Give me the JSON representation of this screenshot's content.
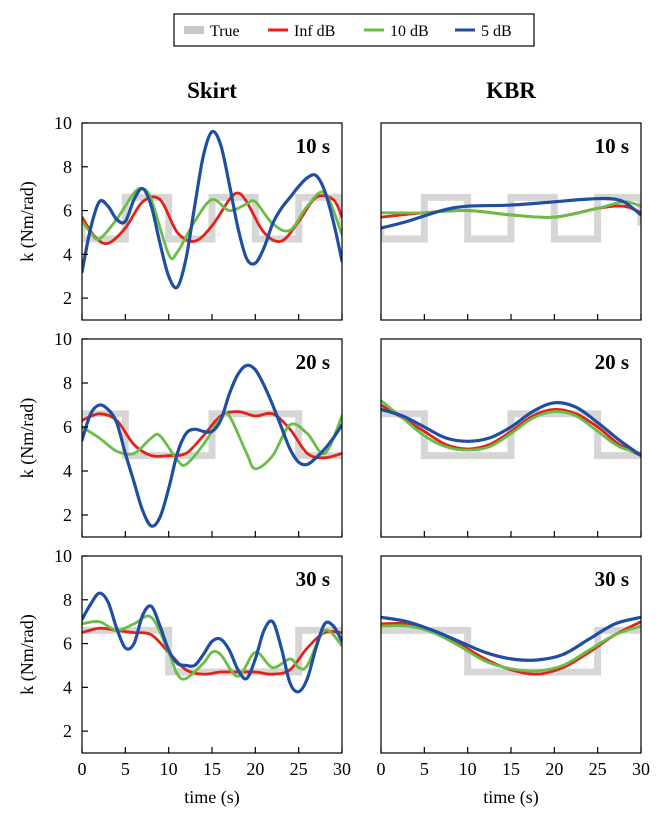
{
  "legend": {
    "items": [
      {
        "name": "True",
        "color": "#c8c8c8"
      },
      {
        "name": "Inf dB",
        "color": "#e32219"
      },
      {
        "name": "10 dB",
        "color": "#6abd45"
      },
      {
        "name": "5 dB",
        "color": "#1f4ea3"
      }
    ]
  },
  "columns": [
    "Skirt",
    "KBR"
  ],
  "chart_data": [
    {
      "type": "line",
      "column": "Skirt",
      "label": "10 s",
      "xlabel": "",
      "ylabel": "k (Nm/rad)",
      "xlim": [
        0,
        30
      ],
      "ylim": [
        1,
        10
      ],
      "yticks": [
        2,
        4,
        6,
        8,
        10
      ],
      "xticks": [
        0,
        5,
        10,
        15,
        20,
        25,
        30
      ],
      "series": [
        {
          "name": "True",
          "x": [
            0,
            0,
            5,
            5,
            10,
            10,
            15,
            15,
            20,
            20,
            25,
            25,
            30,
            30
          ],
          "y": [
            5.3,
            4.7,
            4.7,
            6.6,
            6.6,
            4.7,
            4.7,
            6.6,
            6.6,
            4.7,
            4.7,
            6.6,
            6.6,
            5.3
          ]
        },
        {
          "name": "Inf dB",
          "x": [
            0,
            1.5,
            3,
            5,
            7,
            9,
            11,
            13,
            15,
            17,
            18,
            19,
            21,
            23,
            25,
            27,
            29,
            30
          ],
          "y": [
            5.7,
            4.8,
            4.5,
            5.2,
            6.4,
            6.5,
            5.0,
            4.6,
            5.3,
            6.5,
            6.8,
            6.4,
            5.0,
            4.6,
            5.5,
            6.6,
            6.5,
            5.7
          ]
        },
        {
          "name": "10 dB",
          "x": [
            0,
            1,
            2,
            4,
            6,
            7,
            8,
            10,
            11,
            13,
            15,
            17,
            19,
            20,
            22,
            24,
            26,
            28,
            30
          ],
          "y": [
            5.5,
            5.0,
            4.7,
            5.6,
            6.8,
            7.0,
            6.5,
            4.0,
            4.1,
            5.5,
            6.5,
            6.0,
            6.3,
            6.4,
            5.4,
            5.1,
            6.2,
            6.8,
            4.9
          ]
        },
        {
          "name": "5 dB",
          "x": [
            0,
            1,
            2,
            3,
            4,
            5,
            6,
            7,
            8,
            9,
            10,
            11,
            12,
            13,
            14,
            15,
            16,
            17,
            18,
            19,
            20,
            21,
            22,
            23,
            24,
            25,
            26,
            27,
            28,
            29,
            30
          ],
          "y": [
            3.2,
            5.2,
            6.4,
            6.2,
            5.6,
            5.5,
            6.5,
            7.0,
            6.2,
            4.5,
            3.0,
            2.5,
            3.8,
            6.2,
            8.5,
            9.6,
            9.0,
            7.2,
            5.2,
            3.8,
            3.6,
            4.3,
            5.4,
            6.1,
            6.6,
            7.1,
            7.5,
            7.6,
            6.9,
            5.5,
            3.7
          ]
        }
      ]
    },
    {
      "type": "line",
      "column": "KBR",
      "label": "10 s",
      "xlabel": "",
      "ylabel": "",
      "xlim": [
        0,
        30
      ],
      "ylim": [
        1,
        10
      ],
      "yticks": [],
      "xticks": [
        0,
        5,
        10,
        15,
        20,
        25,
        30
      ],
      "series": [
        {
          "name": "True",
          "x": [
            0,
            0,
            5,
            5,
            10,
            10,
            15,
            15,
            20,
            20,
            25,
            25,
            30,
            30
          ],
          "y": [
            5.3,
            4.7,
            4.7,
            6.6,
            6.6,
            4.7,
            4.7,
            6.6,
            6.6,
            4.7,
            4.7,
            6.6,
            6.6,
            5.3
          ]
        },
        {
          "name": "Inf dB",
          "x": [
            0,
            5,
            10,
            15,
            20,
            25,
            28,
            30
          ],
          "y": [
            5.7,
            5.9,
            6.0,
            5.8,
            5.7,
            6.1,
            6.2,
            5.9
          ]
        },
        {
          "name": "10 dB",
          "x": [
            0,
            5,
            10,
            15,
            20,
            25,
            28,
            30
          ],
          "y": [
            5.9,
            5.9,
            6.0,
            5.8,
            5.7,
            6.1,
            6.4,
            6.2
          ]
        },
        {
          "name": "5 dB",
          "x": [
            0,
            3,
            7,
            10,
            15,
            20,
            23,
            26,
            28,
            30
          ],
          "y": [
            5.2,
            5.5,
            6.0,
            6.2,
            6.25,
            6.4,
            6.5,
            6.55,
            6.4,
            5.8
          ]
        }
      ]
    },
    {
      "type": "line",
      "column": "Skirt",
      "label": "20 s",
      "xlabel": "",
      "ylabel": "k (Nm/rad)",
      "xlim": [
        0,
        30
      ],
      "ylim": [
        1,
        10
      ],
      "yticks": [
        2,
        4,
        6,
        8,
        10
      ],
      "xticks": [
        0,
        5,
        10,
        15,
        20,
        25,
        30
      ],
      "series": [
        {
          "name": "True",
          "x": [
            0,
            0,
            5,
            5,
            15,
            15,
            25,
            25,
            30,
            30
          ],
          "y": [
            6.6,
            6.6,
            6.6,
            4.7,
            4.7,
            6.6,
            6.6,
            4.7,
            4.7,
            4.7
          ]
        },
        {
          "name": "Inf dB",
          "x": [
            0,
            2,
            4,
            6,
            8,
            10,
            12,
            14,
            16,
            18,
            20,
            22,
            24,
            26,
            28,
            30
          ],
          "y": [
            6.3,
            6.6,
            6.3,
            5.2,
            4.7,
            4.7,
            4.8,
            5.6,
            6.5,
            6.7,
            6.5,
            6.6,
            5.9,
            4.8,
            4.6,
            4.8
          ]
        },
        {
          "name": "10 dB",
          "x": [
            0,
            2,
            4,
            6,
            8,
            9,
            11,
            12,
            14,
            16,
            17,
            19,
            20,
            22,
            24,
            26,
            28,
            30
          ],
          "y": [
            6.0,
            5.5,
            4.9,
            4.8,
            5.5,
            5.6,
            4.5,
            4.3,
            5.2,
            6.4,
            6.5,
            4.8,
            4.1,
            4.7,
            6.1,
            5.7,
            4.8,
            6.5
          ]
        },
        {
          "name": "5 dB",
          "x": [
            0,
            1,
            2,
            3,
            4,
            5,
            6,
            7,
            8,
            9,
            10,
            11,
            12,
            13,
            14,
            15,
            16,
            17,
            18,
            19,
            20,
            21,
            22,
            23,
            24,
            25,
            26,
            27,
            28,
            29,
            30
          ],
          "y": [
            5.4,
            6.6,
            7.0,
            6.8,
            6.2,
            4.8,
            3.5,
            2.2,
            1.5,
            1.9,
            3.2,
            4.8,
            5.7,
            5.9,
            5.8,
            5.8,
            6.3,
            7.5,
            8.4,
            8.8,
            8.6,
            7.9,
            7.0,
            6.0,
            5.0,
            4.4,
            4.3,
            4.6,
            5.0,
            5.5,
            6.1
          ]
        }
      ]
    },
    {
      "type": "line",
      "column": "KBR",
      "label": "20 s",
      "xlabel": "",
      "ylabel": "",
      "xlim": [
        0,
        30
      ],
      "ylim": [
        1,
        10
      ],
      "yticks": [],
      "xticks": [
        0,
        5,
        10,
        15,
        20,
        25,
        30
      ],
      "series": [
        {
          "name": "True",
          "x": [
            0,
            0,
            5,
            5,
            15,
            15,
            25,
            25,
            30,
            30
          ],
          "y": [
            6.6,
            6.6,
            6.6,
            4.7,
            4.7,
            6.6,
            6.6,
            4.7,
            4.7,
            4.7
          ]
        },
        {
          "name": "Inf dB",
          "x": [
            0,
            2.5,
            5,
            7.5,
            10,
            12.5,
            15,
            17.5,
            20,
            22.5,
            25,
            27.5,
            30
          ],
          "y": [
            7.0,
            6.4,
            5.8,
            5.2,
            5.0,
            5.2,
            5.8,
            6.5,
            6.8,
            6.6,
            6.0,
            5.2,
            4.7
          ]
        },
        {
          "name": "10 dB",
          "x": [
            0,
            2.5,
            5,
            7.5,
            10,
            12.5,
            15,
            17.5,
            20,
            22.5,
            25,
            27.5,
            30
          ],
          "y": [
            7.2,
            6.4,
            5.6,
            5.1,
            4.95,
            5.1,
            5.7,
            6.4,
            6.7,
            6.5,
            5.8,
            5.1,
            4.8
          ]
        },
        {
          "name": "5 dB",
          "x": [
            0,
            2.5,
            5,
            7.5,
            10,
            12.5,
            15,
            17.5,
            20,
            22.5,
            25,
            27.5,
            30
          ],
          "y": [
            6.8,
            6.5,
            6.0,
            5.5,
            5.35,
            5.5,
            6.0,
            6.7,
            7.1,
            6.9,
            6.2,
            5.4,
            4.7
          ]
        }
      ]
    },
    {
      "type": "line",
      "column": "Skirt",
      "label": "30 s",
      "xlabel": "time (s)",
      "ylabel": "k (Nm/rad)",
      "xlim": [
        0,
        30
      ],
      "ylim": [
        1,
        10
      ],
      "yticks": [
        2,
        4,
        6,
        8,
        10
      ],
      "xticks": [
        0,
        5,
        10,
        15,
        20,
        25,
        30
      ],
      "series": [
        {
          "name": "True",
          "x": [
            0,
            0,
            10,
            10,
            25,
            25,
            30,
            30
          ],
          "y": [
            6.6,
            6.6,
            6.6,
            4.7,
            4.7,
            6.6,
            6.6,
            6.6
          ]
        },
        {
          "name": "Inf dB",
          "x": [
            0,
            2,
            4,
            6,
            8,
            10,
            12,
            14,
            16,
            18,
            20,
            22,
            24,
            26,
            28,
            30
          ],
          "y": [
            6.5,
            6.7,
            6.6,
            6.5,
            6.4,
            5.6,
            4.8,
            4.6,
            4.7,
            4.7,
            4.7,
            4.6,
            4.8,
            5.8,
            6.5,
            6.5
          ]
        },
        {
          "name": "10 dB",
          "x": [
            0,
            2,
            4,
            6,
            8,
            10,
            11,
            12,
            14,
            15,
            16,
            18,
            20,
            22,
            24,
            25,
            26,
            28,
            30
          ],
          "y": [
            6.9,
            7.0,
            6.6,
            6.9,
            7.2,
            5.6,
            4.6,
            4.4,
            5.1,
            5.6,
            5.5,
            4.5,
            5.6,
            4.9,
            5.3,
            4.9,
            5.0,
            6.6,
            5.9
          ]
        },
        {
          "name": "5 dB",
          "x": [
            0,
            1,
            2,
            3,
            4,
            5,
            6,
            7,
            8,
            9,
            10,
            11,
            12,
            13,
            14,
            15,
            16,
            17,
            18,
            19,
            20,
            21,
            22,
            23,
            24,
            25,
            26,
            27,
            28,
            29,
            30
          ],
          "y": [
            7.1,
            7.8,
            8.3,
            7.9,
            6.7,
            5.8,
            6.0,
            7.3,
            7.7,
            6.8,
            5.7,
            5.1,
            5.0,
            5.0,
            5.5,
            6.1,
            6.2,
            5.7,
            4.8,
            4.4,
            5.3,
            6.6,
            7.0,
            5.8,
            4.2,
            3.8,
            4.4,
            5.8,
            6.9,
            6.8,
            6.1
          ]
        }
      ]
    },
    {
      "type": "line",
      "column": "KBR",
      "label": "30 s",
      "xlabel": "time (s)",
      "ylabel": "",
      "xlim": [
        0,
        30
      ],
      "ylim": [
        1,
        10
      ],
      "yticks": [],
      "xticks": [
        0,
        5,
        10,
        15,
        20,
        25,
        30
      ],
      "series": [
        {
          "name": "True",
          "x": [
            0,
            0,
            10,
            10,
            25,
            25,
            30,
            30
          ],
          "y": [
            6.6,
            6.6,
            6.6,
            4.7,
            4.7,
            6.6,
            6.6,
            6.6
          ]
        },
        {
          "name": "Inf dB",
          "x": [
            0,
            3,
            6,
            9,
            12,
            15,
            18,
            21,
            24,
            27,
            30
          ],
          "y": [
            6.9,
            6.9,
            6.6,
            6.0,
            5.3,
            4.8,
            4.6,
            4.9,
            5.6,
            6.4,
            7.0
          ]
        },
        {
          "name": "10 dB",
          "x": [
            0,
            3,
            6,
            9,
            12,
            15,
            18,
            21,
            24,
            27,
            30
          ],
          "y": [
            6.8,
            6.8,
            6.5,
            5.9,
            5.2,
            4.85,
            4.75,
            5.0,
            5.7,
            6.4,
            6.8
          ]
        },
        {
          "name": "5 dB",
          "x": [
            0,
            3,
            6,
            9,
            12,
            15,
            18,
            21,
            24,
            27,
            30
          ],
          "y": [
            7.2,
            7.0,
            6.6,
            6.1,
            5.6,
            5.3,
            5.25,
            5.5,
            6.2,
            6.9,
            7.2
          ]
        }
      ]
    }
  ]
}
